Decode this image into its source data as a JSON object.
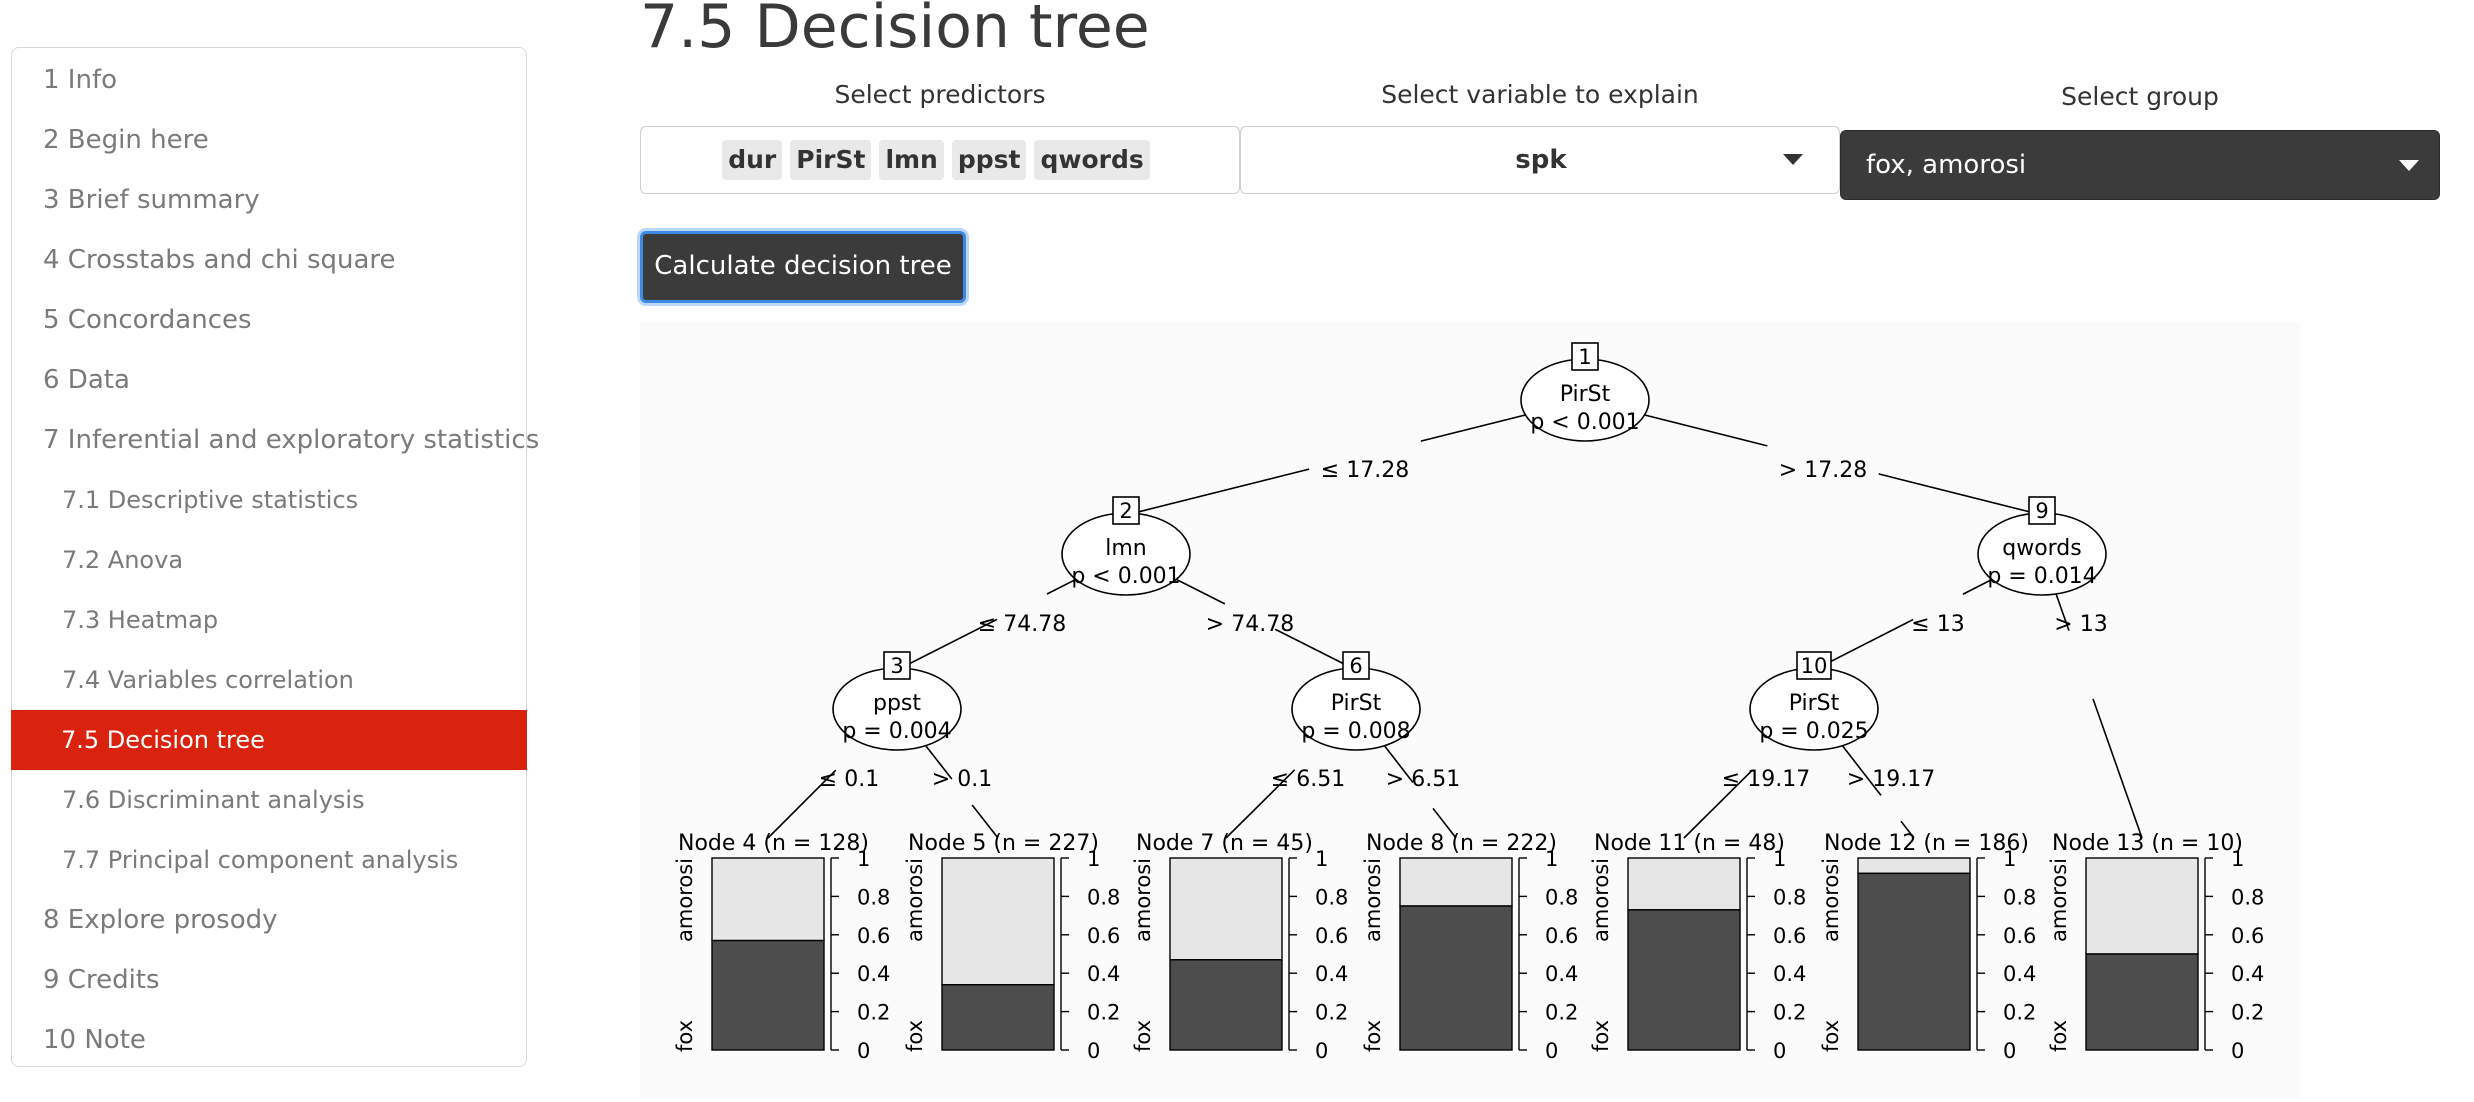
{
  "sidebar": {
    "items": [
      {
        "label": "1 Info",
        "level": 1,
        "active": false
      },
      {
        "label": "2 Begin here",
        "level": 1,
        "active": false
      },
      {
        "label": "3 Brief summary",
        "level": 1,
        "active": false
      },
      {
        "label": "4 Crosstabs and chi square",
        "level": 1,
        "active": false
      },
      {
        "label": "5 Concordances",
        "level": 1,
        "active": false
      },
      {
        "label": "6 Data",
        "level": 1,
        "active": false
      },
      {
        "label": "7 Inferential and exploratory statistics",
        "level": 1,
        "active": false
      },
      {
        "label": "7.1 Descriptive statistics",
        "level": 2,
        "active": false
      },
      {
        "label": "7.2 Anova",
        "level": 2,
        "active": false
      },
      {
        "label": "7.3 Heatmap",
        "level": 2,
        "active": false
      },
      {
        "label": "7.4 Variables correlation",
        "level": 2,
        "active": false
      },
      {
        "label": "7.5 Decision tree",
        "level": 2,
        "active": true
      },
      {
        "label": "7.6 Discriminant analysis",
        "level": 2,
        "active": false
      },
      {
        "label": "7.7 Principal component analysis",
        "level": 2,
        "active": false
      },
      {
        "label": "8 Explore prosody",
        "level": 1,
        "active": false
      },
      {
        "label": "9 Credits",
        "level": 1,
        "active": false
      },
      {
        "label": "10 Note",
        "level": 1,
        "active": false
      }
    ],
    "active_color": "#d9230f"
  },
  "main": {
    "title": "7.5 Decision tree",
    "predictors": {
      "label": "Select predictors",
      "chips": [
        "dur",
        "PirSt",
        "lmn",
        "ppst",
        "qwords"
      ]
    },
    "explain": {
      "label": "Select variable to explain",
      "value": "spk"
    },
    "group": {
      "label": "Select group",
      "value": "fox, amorosi"
    },
    "button_label": "Calculate decision tree"
  },
  "chart_data": {
    "type": "decision-tree",
    "nodes": [
      {
        "id": 1,
        "var": "PirSt",
        "p": "p < 0.001"
      },
      {
        "id": 2,
        "var": "lmn",
        "p": "p < 0.001"
      },
      {
        "id": 3,
        "var": "ppst",
        "p": "p = 0.004"
      },
      {
        "id": 6,
        "var": "PirSt",
        "p": "p = 0.008"
      },
      {
        "id": 9,
        "var": "qwords",
        "p": "p = 0.014"
      },
      {
        "id": 10,
        "var": "PirSt",
        "p": "p = 0.025"
      }
    ],
    "edges": [
      {
        "from": 1,
        "to": 2,
        "label": "≤ 17.28"
      },
      {
        "from": 1,
        "to": 9,
        "label": "> 17.28"
      },
      {
        "from": 2,
        "to": 3,
        "label": "≤ 74.78"
      },
      {
        "from": 2,
        "to": 6,
        "label": "> 74.78"
      },
      {
        "from": 3,
        "to": 4,
        "label": "≤ 0.1"
      },
      {
        "from": 3,
        "to": 5,
        "label": "> 0.1"
      },
      {
        "from": 6,
        "to": 7,
        "label": "≤ 6.51"
      },
      {
        "from": 6,
        "to": 8,
        "label": "> 6.51"
      },
      {
        "from": 9,
        "to": 10,
        "label": "≤ 13"
      },
      {
        "from": 9,
        "to": 13,
        "label": "> 13"
      },
      {
        "from": 10,
        "to": 11,
        "label": "≤ 19.17"
      },
      {
        "from": 10,
        "to": 12,
        "label": "> 19.17"
      }
    ],
    "leaves": [
      {
        "id": 4,
        "title": "Node 4 (n = 128)",
        "fox": 0.57
      },
      {
        "id": 5,
        "title": "Node 5 (n = 227)",
        "fox": 0.34
      },
      {
        "id": 7,
        "title": "Node 7 (n = 45)",
        "fox": 0.47
      },
      {
        "id": 8,
        "title": "Node 8 (n = 222)",
        "fox": 0.75
      },
      {
        "id": 11,
        "title": "Node 11 (n = 48)",
        "fox": 0.73
      },
      {
        "id": 12,
        "title": "Node 12 (n = 186)",
        "fox": 0.92
      },
      {
        "id": 13,
        "title": "Node 13 (n = 10)",
        "fox": 0.5
      }
    ],
    "classes": [
      "fox",
      "amorosi"
    ],
    "yticks": [
      "0",
      "0.2",
      "0.4",
      "0.6",
      "0.8",
      "1"
    ],
    "colors": {
      "fox": "#4d4d4d",
      "amorosi": "#e6e6e6"
    }
  }
}
